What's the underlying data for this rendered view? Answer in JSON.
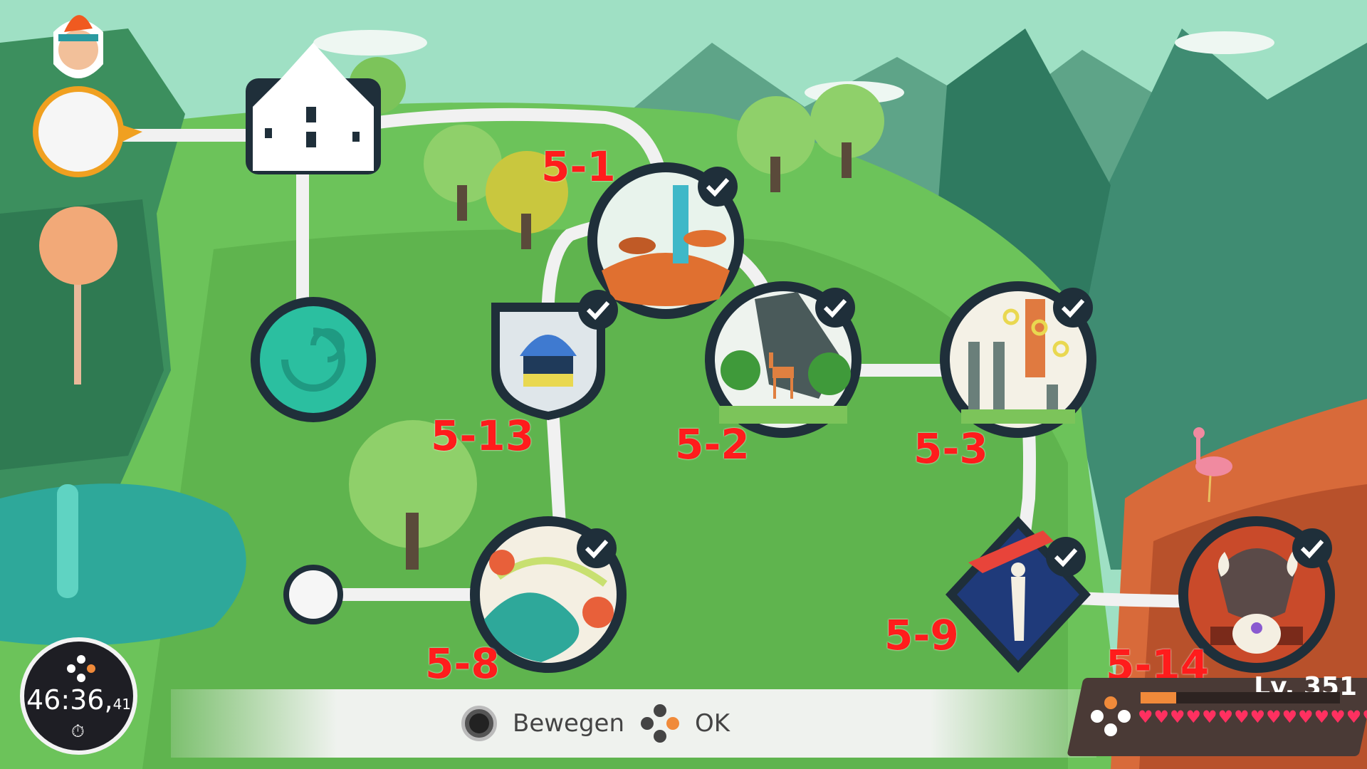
{
  "stages": {
    "s5_1": {
      "label": "5-1",
      "completed": true
    },
    "s5_2": {
      "label": "5-2",
      "completed": true
    },
    "s5_3": {
      "label": "5-3",
      "completed": true
    },
    "s5_8": {
      "label": "5-8",
      "completed": true
    },
    "s5_9": {
      "label": "5-9",
      "completed": true
    },
    "s5_13": {
      "label": "5-13",
      "completed": true
    },
    "s5_14": {
      "label": "5-14",
      "completed": true
    }
  },
  "hud": {
    "timer_main": "46:36,",
    "timer_fraction": "41",
    "move_label": "Bewegen",
    "ok_label": "OK",
    "level": "Lv. 351",
    "exp_percent": 18,
    "hearts": "♥♥♥♥♥♥♥♥♥♥♥♥♥♥♥♥♥♥♥♥♥♥♥♥"
  },
  "colors": {
    "sky": "#9fe0c4",
    "grass": "#6cc35a",
    "path": "#f1f1f1",
    "node_border": "#1f2f3a",
    "label_red": "#ff1c1c",
    "accent_orange": "#f08a3a"
  }
}
